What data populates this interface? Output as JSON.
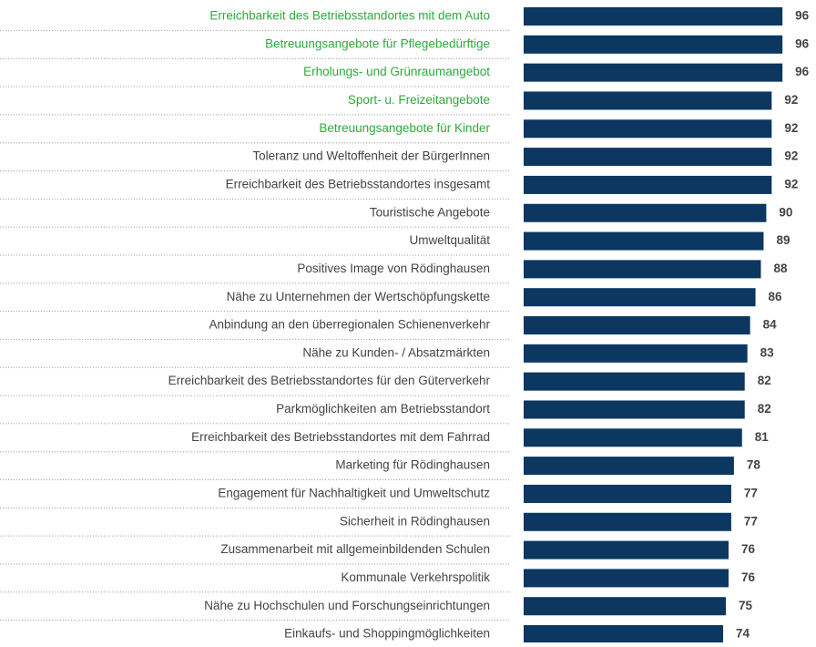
{
  "chart_data": {
    "type": "bar",
    "orientation": "horizontal",
    "color": "#0b3760",
    "categories": [
      "Erreichbarkeit des Betriebsstandortes mit dem Auto",
      "Betreuungsangebote für Pflegebedürftige",
      "Erholungs- und Grünraumangebot",
      "Sport- u. Freizeitangebote",
      "Betreuungsangebote für Kinder",
      "Toleranz und Weltoffenheit der BürgerInnen",
      "Erreichbarkeit des Betriebsstandortes insgesamt",
      "Touristische Angebote",
      "Umweltqualität",
      "Positives Image von Rödinghausen",
      "Nähe zu Unternehmen der Wertschöpfungskette",
      "Anbindung an den überregionalen Schienenverkehr",
      "Nähe zu Kunden- / Absatzmärkten",
      "Erreichbarkeit des Betriebsstandortes für den Güterverkehr",
      "Parkmöglichkeiten am Betriebsstandort",
      "Erreichbarkeit des Betriebsstandortes mit dem Fahrrad",
      "Marketing für Rödinghausen",
      "Engagement für Nachhaltigkeit und Umweltschutz",
      "Sicherheit in Rödinghausen",
      "Zusammenarbeit mit allgemeinbildenden Schulen",
      "Kommunale Verkehrspolitik",
      "Nähe zu Hochschulen und Forschungseinrichtungen",
      "Einkaufs- und Shoppingmöglichkeiten"
    ],
    "values": [
      96,
      96,
      96,
      92,
      92,
      92,
      92,
      90,
      89,
      88,
      86,
      84,
      83,
      82,
      82,
      81,
      78,
      77,
      77,
      76,
      76,
      75,
      74
    ],
    "label_colors": [
      "#2eaa3c",
      "#2eaa3c",
      "#2eaa3c",
      "#2eaa3c",
      "#2eaa3c",
      "#444444",
      "#444444",
      "#444444",
      "#444444",
      "#444444",
      "#444444",
      "#444444",
      "#444444",
      "#444444",
      "#444444",
      "#444444",
      "#444444",
      "#444444",
      "#444444",
      "#444444",
      "#444444",
      "#444444",
      "#444444"
    ]
  }
}
